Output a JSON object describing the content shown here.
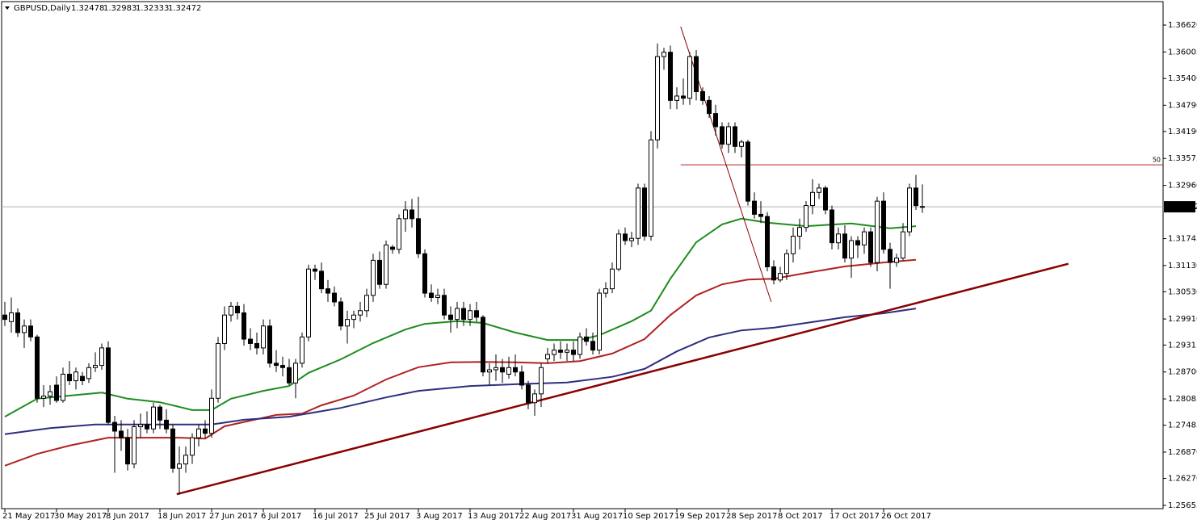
{
  "chart_data": {
    "type": "candlestick",
    "title": "GBPUSD,Daily",
    "up_color": "#ffffff",
    "down_color": "#000000",
    "ylim": [
      1.2558,
      1.371
    ],
    "yticks": [
      {
        "value": 1.3662,
        "label": "1.36620"
      },
      {
        "value": 1.36005,
        "label": "1.36005"
      },
      {
        "value": 1.354,
        "label": "1.35400"
      },
      {
        "value": 1.3479,
        "label": "1.34790"
      },
      {
        "value": 1.3419,
        "label": "1.34190"
      },
      {
        "value": 1.33575,
        "label": "1.33575"
      },
      {
        "value": 1.3296,
        "label": "1.32960"
      },
      {
        "value": 1.31745,
        "label": "1.31745"
      },
      {
        "value": 1.3113,
        "label": "1.31130"
      },
      {
        "value": 1.3053,
        "label": "1.30530"
      },
      {
        "value": 1.2991,
        "label": "1.29910"
      },
      {
        "value": 1.29315,
        "label": "1.29315"
      },
      {
        "value": 1.287,
        "label": "1.28700"
      },
      {
        "value": 1.28085,
        "label": "1.28085"
      },
      {
        "value": 1.27485,
        "label": "1.27485"
      },
      {
        "value": 1.2687,
        "label": "1.26870"
      },
      {
        "value": 1.2627,
        "label": "1.26270"
      },
      {
        "value": 1.25655,
        "label": "1.25655"
      }
    ],
    "categories": [
      "21 May 2017",
      null,
      null,
      null,
      null,
      null,
      null,
      null,
      "30 May 2017",
      null,
      null,
      null,
      null,
      null,
      null,
      null,
      "8 Jun 2017",
      null,
      null,
      null,
      null,
      null,
      null,
      null,
      "18 Jun 2017",
      null,
      null,
      null,
      null,
      null,
      null,
      null,
      "27 Jun 2017",
      null,
      null,
      null,
      null,
      null,
      null,
      null,
      "6 Jul 2017",
      null,
      null,
      null,
      null,
      null,
      null,
      null,
      "16 Jul 2017",
      null,
      null,
      null,
      null,
      null,
      null,
      null,
      "25 Jul 2017",
      null,
      null,
      null,
      null,
      null,
      null,
      null,
      "3 Aug 2017",
      null,
      null,
      null,
      null,
      null,
      null,
      null,
      "13 Aug 2017",
      null,
      null,
      null,
      null,
      null,
      null,
      null,
      "22 Aug 2017",
      null,
      null,
      null,
      null,
      null,
      null,
      null,
      "31 Aug 2017",
      null,
      null,
      null,
      null,
      null,
      null,
      null,
      "10 Sep 2017",
      null,
      null,
      null,
      null,
      null,
      null,
      null,
      "19 Sep 2017",
      null,
      null,
      null,
      null,
      null,
      null,
      null,
      "28 Sep 2017",
      null,
      null,
      null,
      null,
      null,
      null,
      null,
      "8 Oct 2017",
      null,
      null,
      null,
      null,
      null,
      null,
      null,
      "17 Oct 2017",
      null,
      null,
      null,
      null,
      null,
      null,
      null,
      "26 Oct 2017",
      null,
      null,
      null,
      null,
      null,
      null
    ],
    "candles": [
      [
        1.3,
        1.303,
        1.2975,
        1.299
      ],
      [
        1.2985,
        1.304,
        1.296,
        1.3005
      ],
      [
        1.3005,
        1.3015,
        1.295,
        1.296
      ],
      [
        1.296,
        1.299,
        1.2925,
        1.2975
      ],
      [
        1.2975,
        1.299,
        1.294,
        1.295
      ],
      [
        1.295,
        1.2955,
        1.28,
        1.281
      ],
      [
        1.281,
        1.284,
        1.279,
        1.2815
      ],
      [
        1.2815,
        1.284,
        1.2795,
        1.2825
      ],
      [
        1.284,
        1.286,
        1.28,
        1.2805
      ],
      [
        1.2805,
        1.288,
        1.28,
        1.2865
      ],
      [
        1.2865,
        1.2895,
        1.284,
        1.285
      ],
      [
        1.285,
        1.288,
        1.283,
        1.287
      ],
      [
        1.286,
        1.287,
        1.284,
        1.285
      ],
      [
        1.2855,
        1.289,
        1.2845,
        1.288
      ],
      [
        1.288,
        1.2915,
        1.287,
        1.2885
      ],
      [
        1.2885,
        1.2935,
        1.2875,
        1.2925
      ],
      [
        1.2925,
        1.294,
        1.275,
        1.2755
      ],
      [
        1.2755,
        1.277,
        1.264,
        1.2735
      ],
      [
        1.2735,
        1.276,
        1.269,
        1.272
      ],
      [
        1.272,
        1.274,
        1.2645,
        1.266
      ],
      [
        1.266,
        1.276,
        1.265,
        1.2745
      ],
      [
        1.2745,
        1.2775,
        1.272,
        1.275
      ],
      [
        1.275,
        1.278,
        1.273,
        1.274
      ],
      [
        1.274,
        1.28,
        1.273,
        1.279
      ],
      [
        1.279,
        1.2795,
        1.274,
        1.276
      ],
      [
        1.276,
        1.2785,
        1.273,
        1.274
      ],
      [
        1.274,
        1.275,
        1.264,
        1.265
      ],
      [
        1.265,
        1.27,
        1.259,
        1.266
      ],
      [
        1.266,
        1.27,
        1.264,
        1.268
      ],
      [
        1.268,
        1.273,
        1.266,
        1.272
      ],
      [
        1.272,
        1.275,
        1.27,
        1.274
      ],
      [
        1.274,
        1.276,
        1.272,
        1.273
      ],
      [
        1.273,
        1.283,
        1.272,
        1.281
      ],
      [
        1.281,
        1.295,
        1.28,
        1.2935
      ],
      [
        1.2935,
        1.302,
        1.292,
        1.3
      ],
      [
        1.3,
        1.303,
        1.2985,
        1.302
      ],
      [
        1.302,
        1.303,
        1.299,
        1.3005
      ],
      [
        1.3005,
        1.3025,
        1.293,
        1.2945
      ],
      [
        1.2945,
        1.297,
        1.292,
        1.2935
      ],
      [
        1.2935,
        1.296,
        1.291,
        1.2925
      ],
      [
        1.2925,
        1.299,
        1.291,
        1.2975
      ],
      [
        1.2975,
        1.299,
        1.288,
        1.289
      ],
      [
        1.289,
        1.292,
        1.287,
        1.2885
      ],
      [
        1.2885,
        1.2905,
        1.286,
        1.288
      ],
      [
        1.288,
        1.29,
        1.284,
        1.2845
      ],
      [
        1.2845,
        1.29,
        1.281,
        1.289
      ],
      [
        1.289,
        1.296,
        1.288,
        1.295
      ],
      [
        1.295,
        1.3115,
        1.294,
        1.3105
      ],
      [
        1.3105,
        1.3115,
        1.308,
        1.31
      ],
      [
        1.31,
        1.312,
        1.305,
        1.306
      ],
      [
        1.306,
        1.308,
        1.303,
        1.305
      ],
      [
        1.305,
        1.3065,
        1.302,
        1.303
      ],
      [
        1.303,
        1.304,
        1.2965,
        1.2975
      ],
      [
        1.2975,
        1.301,
        1.2935,
        1.299
      ],
      [
        1.299,
        1.301,
        1.297,
        1.3
      ],
      [
        1.3,
        1.303,
        1.2985,
        1.301
      ],
      [
        1.301,
        1.306,
        1.2995,
        1.3045
      ],
      [
        1.3045,
        1.314,
        1.303,
        1.3125
      ],
      [
        1.3125,
        1.3145,
        1.306,
        1.307
      ],
      [
        1.307,
        1.317,
        1.306,
        1.316
      ],
      [
        1.3155,
        1.316,
        1.314,
        1.315
      ],
      [
        1.315,
        1.323,
        1.314,
        1.322
      ],
      [
        1.322,
        1.326,
        1.319,
        1.324
      ],
      [
        1.324,
        1.3265,
        1.32,
        1.322
      ],
      [
        1.322,
        1.327,
        1.313,
        1.314
      ],
      [
        1.314,
        1.315,
        1.304,
        1.305
      ],
      [
        1.305,
        1.307,
        1.303,
        1.304
      ],
      [
        1.304,
        1.306,
        1.3025,
        1.3045
      ],
      [
        1.3045,
        1.306,
        1.299,
        1.3
      ],
      [
        1.3,
        1.302,
        1.296,
        1.299
      ],
      [
        1.299,
        1.303,
        1.297,
        1.3015
      ],
      [
        1.3015,
        1.303,
        1.2975,
        1.299
      ],
      [
        1.299,
        1.3025,
        1.2975,
        1.301
      ],
      [
        1.301,
        1.303,
        1.2985,
        1.2995
      ],
      [
        1.2995,
        1.3,
        1.286,
        1.287
      ],
      [
        1.287,
        1.289,
        1.284,
        1.2875
      ],
      [
        1.2875,
        1.291,
        1.285,
        1.288
      ],
      [
        1.288,
        1.29,
        1.2845,
        1.287
      ],
      [
        1.2865,
        1.2905,
        1.2855,
        1.288
      ],
      [
        1.288,
        1.291,
        1.286,
        1.287
      ],
      [
        1.287,
        1.2885,
        1.283,
        1.284
      ],
      [
        1.284,
        1.285,
        1.2785,
        1.28
      ],
      [
        1.28,
        1.283,
        1.277,
        1.282
      ],
      [
        1.282,
        1.289,
        1.279,
        1.288
      ],
      [
        1.29,
        1.2925,
        1.289,
        1.291
      ],
      [
        1.291,
        1.2935,
        1.2895,
        1.292
      ],
      [
        1.292,
        1.294,
        1.29,
        1.2915
      ],
      [
        1.2915,
        1.2935,
        1.2895,
        1.292
      ],
      [
        1.292,
        1.294,
        1.2895,
        1.291
      ],
      [
        1.291,
        1.296,
        1.29,
        1.295
      ],
      [
        1.295,
        1.297,
        1.293,
        1.294
      ],
      [
        1.294,
        1.296,
        1.291,
        1.292
      ],
      [
        1.292,
        1.306,
        1.291,
        1.305
      ],
      [
        1.305,
        1.3075,
        1.304,
        1.306
      ],
      [
        1.306,
        1.312,
        1.305,
        1.3105
      ],
      [
        1.3105,
        1.3195,
        1.31,
        1.3185
      ],
      [
        1.3185,
        1.32,
        1.316,
        1.317
      ],
      [
        1.317,
        1.319,
        1.3155,
        1.3175
      ],
      [
        1.3175,
        1.33,
        1.316,
        1.329
      ],
      [
        1.329,
        1.33,
        1.317,
        1.318
      ],
      [
        1.318,
        1.342,
        1.317,
        1.34
      ],
      [
        1.34,
        1.362,
        1.338,
        1.359
      ],
      [
        1.359,
        1.361,
        1.356,
        1.36
      ],
      [
        1.36,
        1.3615,
        1.347,
        1.349
      ],
      [
        1.349,
        1.352,
        1.347,
        1.35
      ],
      [
        1.35,
        1.354,
        1.348,
        1.3495
      ],
      [
        1.3495,
        1.36,
        1.348,
        1.359
      ],
      [
        1.359,
        1.3605,
        1.349,
        1.351
      ],
      [
        1.351,
        1.352,
        1.348,
        1.349
      ],
      [
        1.349,
        1.35,
        1.345,
        1.346
      ],
      [
        1.346,
        1.348,
        1.341,
        1.343
      ],
      [
        1.343,
        1.344,
        1.338,
        1.339
      ],
      [
        1.339,
        1.344,
        1.337,
        1.343
      ],
      [
        1.343,
        1.344,
        1.337,
        1.3385
      ],
      [
        1.3385,
        1.34,
        1.336,
        1.3395
      ],
      [
        1.3395,
        1.34,
        1.325,
        1.326
      ],
      [
        1.326,
        1.328,
        1.322,
        1.323
      ],
      [
        1.323,
        1.326,
        1.321,
        1.3225
      ],
      [
        1.3225,
        1.3235,
        1.31,
        1.311
      ],
      [
        1.311,
        1.3125,
        1.307,
        1.308
      ],
      [
        1.308,
        1.311,
        1.3075,
        1.3095
      ],
      [
        1.3095,
        1.315,
        1.308,
        1.314
      ],
      [
        1.314,
        1.32,
        1.312,
        1.318
      ],
      [
        1.318,
        1.322,
        1.315,
        1.32
      ],
      [
        1.32,
        1.326,
        1.319,
        1.325
      ],
      [
        1.325,
        1.331,
        1.323,
        1.328
      ],
      [
        1.328,
        1.33,
        1.3265,
        1.329
      ],
      [
        1.329,
        1.3295,
        1.323,
        1.324
      ],
      [
        1.324,
        1.325,
        1.315,
        1.3165
      ],
      [
        1.3165,
        1.32,
        1.315,
        1.3185
      ],
      [
        1.3185,
        1.3205,
        1.312,
        1.313
      ],
      [
        1.313,
        1.318,
        1.3085,
        1.317
      ],
      [
        1.317,
        1.318,
        1.313,
        1.316
      ],
      [
        1.316,
        1.32,
        1.314,
        1.319
      ],
      [
        1.319,
        1.32,
        1.311,
        1.312
      ],
      [
        1.312,
        1.327,
        1.31,
        1.326
      ],
      [
        1.326,
        1.328,
        1.314,
        1.315
      ],
      [
        1.315,
        1.3165,
        1.306,
        1.312
      ],
      [
        1.312,
        1.314,
        1.311,
        1.313
      ],
      [
        1.313,
        1.321,
        1.3125,
        1.319
      ],
      [
        1.319,
        1.33,
        1.318,
        1.329
      ],
      [
        1.329,
        1.332,
        1.324,
        1.325
      ],
      [
        1.32478,
        1.32983,
        1.32333,
        1.32472
      ]
    ],
    "lines": [
      {
        "color": "#1e8c1e",
        "x": [
          0,
          5,
          10,
          15,
          19,
          24,
          29,
          32,
          35,
          40,
          44,
          47,
          52,
          57,
          62,
          65,
          70,
          74,
          79,
          84,
          89,
          92,
          97,
          100,
          103,
          107,
          111,
          114,
          118,
          124,
          131,
          137,
          141
        ],
        "values": [
          1.2768,
          1.2809,
          1.2816,
          1.2823,
          1.2809,
          1.2801,
          1.2783,
          1.2783,
          1.2809,
          1.2827,
          1.2838,
          1.2868,
          1.2899,
          1.2936,
          1.2967,
          1.298,
          1.2986,
          1.2982,
          1.296,
          1.2943,
          1.2943,
          1.2954,
          1.2986,
          1.301,
          1.3083,
          1.3166,
          1.3207,
          1.322,
          1.3211,
          1.3203,
          1.3209,
          1.3198,
          1.3203
        ]
      },
      {
        "color": "#b22222",
        "x": [
          0,
          5,
          10,
          16,
          22,
          27,
          31,
          34,
          42,
          46,
          49,
          54,
          59,
          64,
          69,
          74,
          79,
          84,
          89,
          94,
          99,
          103,
          107,
          111,
          115,
          119,
          124,
          130,
          136,
          141
        ],
        "values": [
          1.2656,
          1.2683,
          1.2702,
          1.272,
          1.272,
          1.272,
          1.2718,
          1.2746,
          1.2772,
          1.2775,
          1.2794,
          1.2816,
          1.2853,
          1.2881,
          1.2892,
          1.2893,
          1.2892,
          1.289,
          1.2895,
          1.2912,
          1.2945,
          1.3,
          1.3045,
          1.307,
          1.3081,
          1.3083,
          1.3096,
          1.3111,
          1.312,
          1.3126
        ]
      },
      {
        "color": "#2e2e7e",
        "x": [
          0,
          7,
          14,
          24,
          32,
          37,
          44,
          52,
          59,
          64,
          72,
          79,
          87,
          94,
          99,
          104,
          109,
          114,
          119,
          124,
          130,
          136,
          141
        ],
        "values": [
          1.2728,
          1.2742,
          1.275,
          1.275,
          1.275,
          1.2761,
          1.2768,
          1.2788,
          1.2812,
          1.2827,
          1.2838,
          1.2842,
          1.2846,
          1.2859,
          1.2877,
          1.2917,
          1.2949,
          1.2965,
          1.2971,
          1.2982,
          1.2995,
          1.3004,
          1.3015
        ]
      }
    ],
    "trendlines": [
      {
        "color": "#8b0000",
        "width": 2.5,
        "x": [
          26.6,
          164.6
        ],
        "values": [
          1.2591,
          1.3117
        ]
      },
      {
        "color": "#8b0000",
        "width": 1,
        "x": [
          104.6,
          118.6
        ],
        "values": [
          1.3658,
          1.303
        ]
      }
    ],
    "level": {
      "label": "50",
      "value": 1.3343,
      "x_start": 104.6,
      "color": "#b22222"
    }
  }
}
